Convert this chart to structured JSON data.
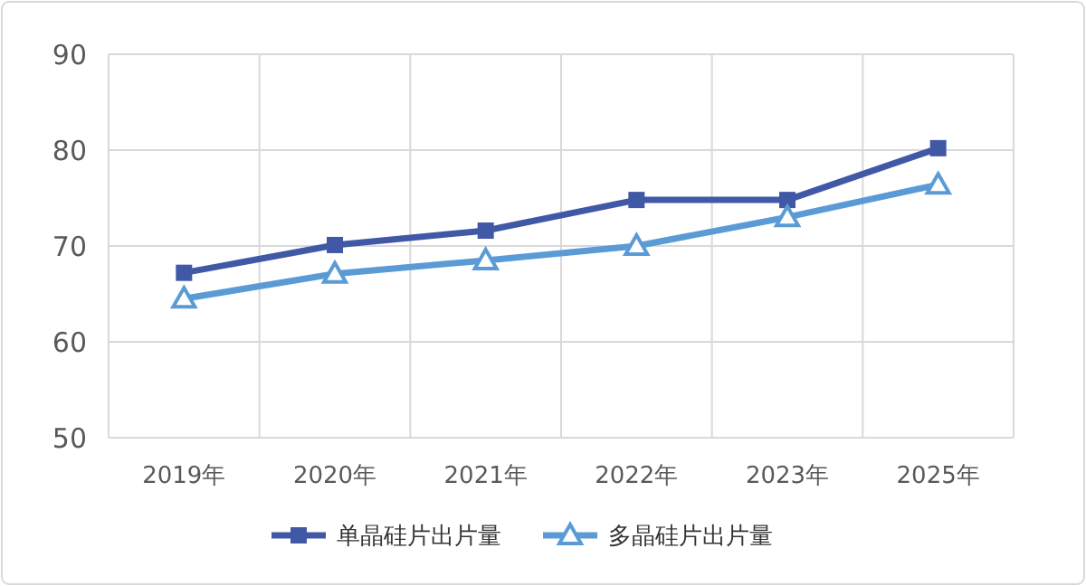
{
  "chart_data": {
    "type": "line",
    "categories": [
      "2019年",
      "2020年",
      "2021年",
      "2022年",
      "2023年",
      "2025年"
    ],
    "series": [
      {
        "name": "单晶硅片出片量",
        "color": "#4158a6",
        "marker": "square",
        "values": [
          67.2,
          70.1,
          71.6,
          74.8,
          74.8,
          80.2
        ]
      },
      {
        "name": "多晶硅片出片量",
        "color": "#5b9bd5",
        "marker": "triangle",
        "values": [
          64.5,
          67.1,
          68.5,
          70.0,
          73.0,
          76.4
        ]
      }
    ],
    "ylim": [
      50,
      90
    ],
    "yticks": [
      50,
      60,
      70,
      80,
      90
    ],
    "grid": true,
    "legend": "bottom"
  }
}
